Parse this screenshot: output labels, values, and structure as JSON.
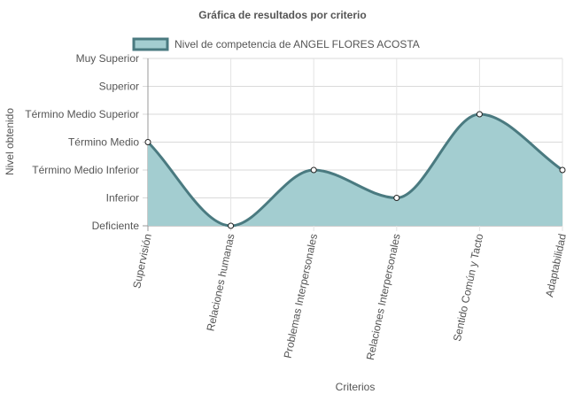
{
  "chart_data": {
    "type": "area",
    "title": "Gráfica de resultados por criterio",
    "xlabel": "Criterios",
    "ylabel": "Nivel obtenido",
    "categories": [
      "Supervisión",
      "Relaciones humanas",
      "Problemas Interpersonales",
      "Relaciones Interpersonales",
      "Sentido Común y Tacto",
      "Adaptabilidad"
    ],
    "y_levels": [
      "Deficiente",
      "Inferior",
      "Término Medio Inferior",
      "Término Medio",
      "Término Medio Superior",
      "Superior",
      "Muy Superior"
    ],
    "ylim": [
      0,
      6
    ],
    "grid": true,
    "legend_position": "top",
    "series": [
      {
        "name": "Nivel de competencia de ANGEL FLORES ACOSTA",
        "values": [
          3,
          0,
          2,
          1,
          4,
          2
        ],
        "fill_color": "#a3cdd0",
        "line_color": "#4a7a80"
      }
    ]
  }
}
